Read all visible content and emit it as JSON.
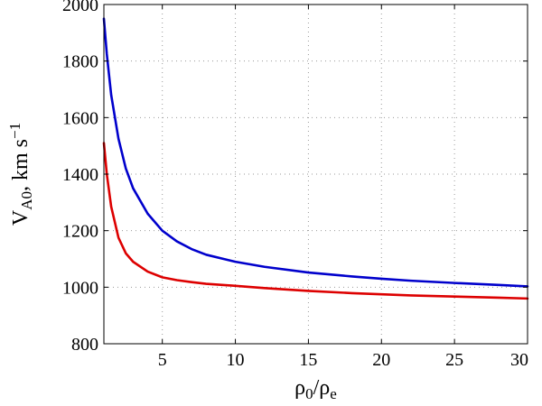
{
  "chart_data": {
    "type": "line",
    "title": "",
    "xlabel": "ρ0/ρe",
    "ylabel": "VA0, km s−1",
    "xlim": [
      1,
      30
    ],
    "ylim": [
      800,
      2000
    ],
    "grid": true,
    "x_ticks": [
      5,
      10,
      15,
      20,
      25,
      30
    ],
    "y_ticks": [
      800,
      1000,
      1200,
      1400,
      1600,
      1800,
      2000
    ],
    "x_tick_labels": [
      "5",
      "10",
      "15",
      "20",
      "25",
      "30"
    ],
    "y_tick_labels": [
      "800",
      "1000",
      "1200",
      "1400",
      "1600",
      "1800",
      "2000"
    ],
    "series": [
      {
        "color": "#0000cc",
        "x": [
          1,
          1.2,
          1.5,
          2,
          2.5,
          3,
          4,
          5,
          6,
          7,
          8,
          10,
          12,
          15,
          18,
          20,
          22,
          25,
          28,
          30
        ],
        "y": [
          1950,
          1825,
          1680,
          1525,
          1420,
          1350,
          1260,
          1200,
          1162,
          1135,
          1115,
          1090,
          1072,
          1052,
          1038,
          1030,
          1023,
          1015,
          1008,
          1003
        ]
      },
      {
        "color": "#dd0000",
        "x": [
          1,
          1.2,
          1.5,
          2,
          2.5,
          3,
          4,
          5,
          6,
          7,
          8,
          10,
          12,
          15,
          18,
          20,
          22,
          25,
          28,
          30
        ],
        "y": [
          1510,
          1400,
          1285,
          1175,
          1120,
          1090,
          1055,
          1035,
          1025,
          1018,
          1012,
          1005,
          997,
          987,
          979,
          975,
          971,
          967,
          963,
          960
        ]
      }
    ]
  }
}
